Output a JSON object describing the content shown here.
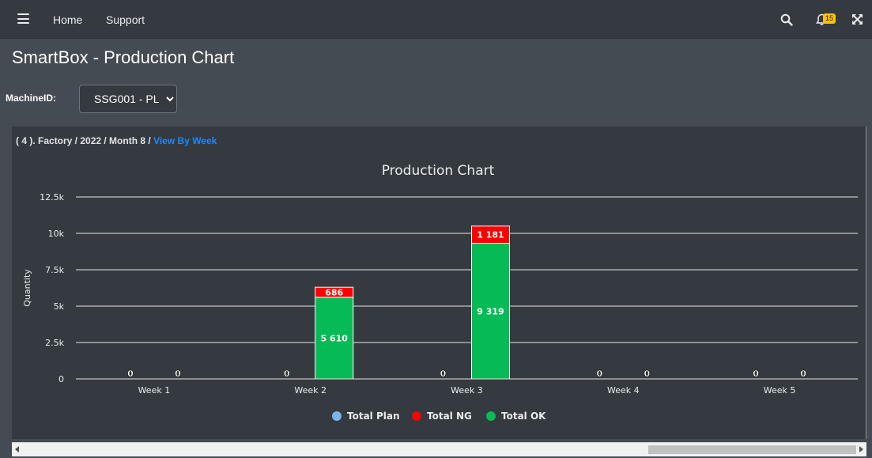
{
  "nav": {
    "home_label": "Home",
    "support_label": "Support",
    "notification_count": "15"
  },
  "page": {
    "title": "SmartBox - Production Chart"
  },
  "filter": {
    "machine_label": "MachineID:",
    "machine_value": "SSG001 - PL"
  },
  "breadcrumb": {
    "path": "( 4 ). Factory / 2022 / Month 8 /",
    "link": "View By Week"
  },
  "colors": {
    "plan": "#7cb5ec",
    "ng": "#ff0000",
    "ok": "#06bb55"
  },
  "chart_data": {
    "type": "bar",
    "title": "Production Chart",
    "ylabel": "Quantity",
    "xlabel": "",
    "categories": [
      "Week 1",
      "Week 2",
      "Week 3",
      "Week 4",
      "Week 5"
    ],
    "ylim": [
      0,
      12500
    ],
    "yticks": [
      0,
      2500,
      5000,
      7500,
      10000,
      12500
    ],
    "ytick_labels": [
      "0",
      "2.5k",
      "5k",
      "7.5k",
      "10k",
      "12.5k"
    ],
    "grid": true,
    "legend": "bottom-center",
    "series": [
      {
        "name": "Total Plan",
        "stack": "plan",
        "values": [
          0,
          0,
          0,
          0,
          0
        ],
        "labels": [
          "0",
          "0",
          "0",
          "0",
          "0"
        ]
      },
      {
        "name": "Total NG",
        "stack": "actual",
        "values": [
          0,
          686,
          1181,
          0,
          0
        ],
        "labels": [
          "",
          "686",
          "1 181",
          "",
          ""
        ]
      },
      {
        "name": "Total OK",
        "stack": "actual",
        "values": [
          0,
          5610,
          9319,
          0,
          0
        ],
        "labels": [
          "0",
          "5 610",
          "9 319",
          "0",
          "0"
        ]
      }
    ]
  }
}
